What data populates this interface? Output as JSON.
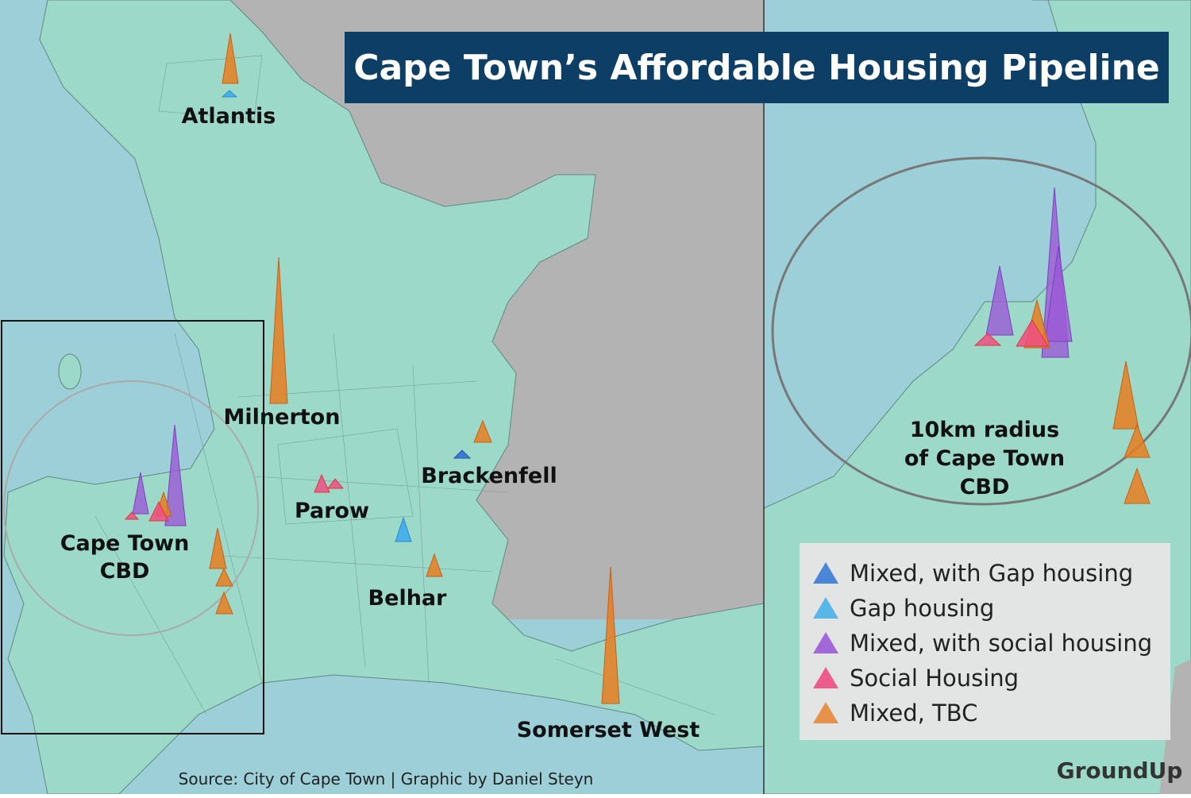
{
  "title": "Cape Town’s Affordable Housing Pipeline",
  "places": {
    "atlantis": "Atlantis",
    "milnerton": "Milnerton",
    "parow": "Parow",
    "brackenfell": "Brackenfell",
    "belhar": "Belhar",
    "somerset_west": "Somerset West",
    "cbd": [
      "Cape Town",
      "CBD"
    ]
  },
  "inset_label": [
    "10km radius",
    "of Cape Town",
    "CBD"
  ],
  "legend": [
    {
      "label": "Mixed, with Gap housing",
      "color": "#3a7bd5"
    },
    {
      "label": "Gap housing",
      "color": "#4ab0e8"
    },
    {
      "label": "Mixed, with social housing",
      "color": "#9b59d6"
    },
    {
      "label": "Social Housing",
      "color": "#ee4d82"
    },
    {
      "label": "Mixed, TBC",
      "color": "#e8883a"
    }
  ],
  "source": "Source: City of Cape Town | Graphic by Daniel Steyn",
  "logo": "GroundUp"
}
